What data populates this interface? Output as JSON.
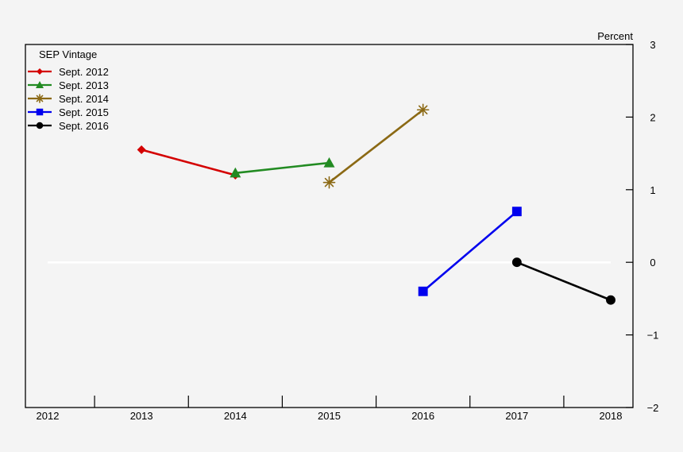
{
  "chart_data": {
    "type": "line",
    "ylabel": "Percent",
    "ylim": [
      -2,
      3
    ],
    "yticks": [
      3,
      2,
      1,
      0,
      -1,
      -2
    ],
    "ytick_labels": [
      "3",
      "2",
      "1",
      "0",
      "−1",
      "−2"
    ],
    "xlim": [
      2012,
      2018
    ],
    "xtick_labels": [
      "2012",
      "2013",
      "2014",
      "2015",
      "2016",
      "2017",
      "2018"
    ],
    "axis_side": "right",
    "zero_line": true,
    "legend": {
      "title": "SEP Vintage",
      "placement": "top-left"
    },
    "series": [
      {
        "name": "Sept. 2012",
        "color": "#d40000",
        "marker": "diamond",
        "x": [
          2013,
          2014
        ],
        "y": [
          1.55,
          1.2
        ]
      },
      {
        "name": "Sept. 2013",
        "color": "#228b22",
        "marker": "triangle",
        "x": [
          2014,
          2015
        ],
        "y": [
          1.23,
          1.37
        ]
      },
      {
        "name": "Sept. 2014",
        "color": "#8b6914",
        "marker": "asterisk",
        "x": [
          2015,
          2016
        ],
        "y": [
          1.1,
          2.1
        ]
      },
      {
        "name": "Sept. 2015",
        "color": "#0000ee",
        "marker": "square",
        "x": [
          2016,
          2017
        ],
        "y": [
          -0.4,
          0.7
        ]
      },
      {
        "name": "Sept. 2016",
        "color": "#000000",
        "marker": "circle",
        "x": [
          2017,
          2018
        ],
        "y": [
          0.0,
          -0.52
        ]
      }
    ]
  }
}
